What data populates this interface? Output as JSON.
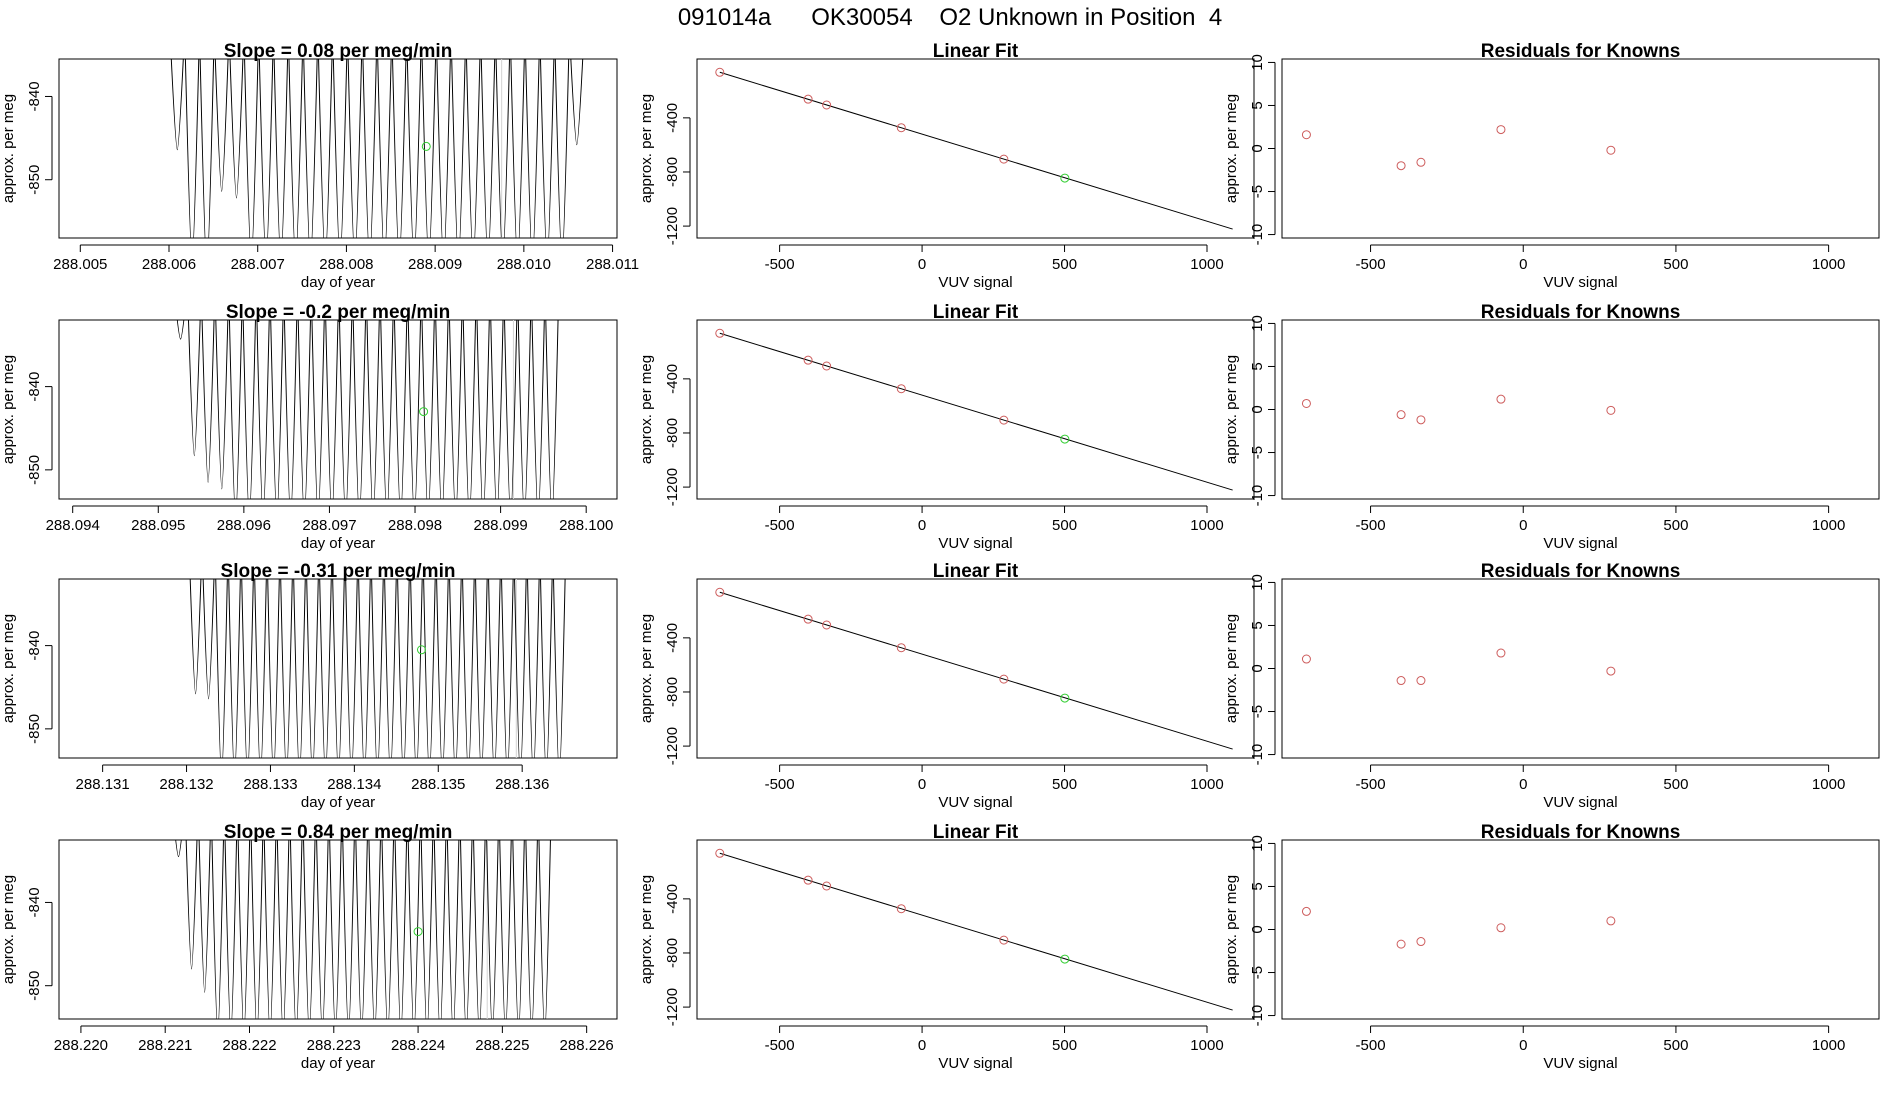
{
  "page": {
    "title": "091014a      OK30054    O2 Unknown in Position  4"
  },
  "colors": {
    "known": "#cd5c5c",
    "unknown": "#32cd32",
    "line": "#000000",
    "trace": "#000000",
    "refline": "#d3d3d3"
  },
  "chart_data": [
    {
      "type": "line",
      "row": 0,
      "panel": "time",
      "title": "Slope =  0.08  per meg/min",
      "xlabel": "day of year",
      "ylabel": "approx. per meg",
      "xlim": [
        288.00476,
        288.01105
      ],
      "ylim": [
        -857,
        -835.5
      ],
      "xticks": [
        288.005,
        288.006,
        288.007,
        288.008,
        288.009,
        288.01,
        288.011
      ],
      "xtick_labels": [
        "288.005",
        "288.006",
        "288.007",
        "288.008",
        "288.009",
        "288.010",
        "288.011"
      ],
      "yticks": [
        -840,
        -850
      ],
      "ytick_labels": [
        "-840",
        "-850"
      ],
      "trace": {
        "start": 288.00601,
        "end": 288.01068,
        "cycles": 28,
        "top": -832,
        "minima": [
          -846.4,
          -860,
          -861,
          -851.4,
          -852.2,
          -860,
          -860,
          -860,
          -860,
          -860,
          -860,
          -860,
          -860,
          -860,
          -860,
          -860,
          -860,
          -860,
          -860,
          -860,
          -860,
          -860,
          -860,
          -860,
          -860,
          -860,
          -860,
          -845.8
        ]
      },
      "refline_x": 288.00975,
      "unknown_point": {
        "x": 288.0089,
        "y": -846
      }
    },
    {
      "type": "scatter",
      "row": 0,
      "panel": "fit",
      "title": "Linear Fit",
      "xlabel": "VUV signal",
      "ylabel": "approx. per meg",
      "xlim": [
        -790,
        1165
      ],
      "ylim": [
        -1288,
        35
      ],
      "xticks": [
        -500,
        0,
        500,
        1000
      ],
      "xtick_labels": [
        "-500",
        "0",
        "500",
        "1000"
      ],
      "yticks": [
        -400,
        -800,
        -1200
      ],
      "ytick_labels": [
        "-400",
        "-800",
        "-1200"
      ],
      "fit_line": {
        "x": [
          -710,
          1090
        ],
        "y": [
          -63,
          -1222
        ]
      },
      "knowns": {
        "x": [
          -710,
          -400,
          -335,
          -73,
          287
        ],
        "y": [
          -63,
          -262,
          -305,
          -473,
          -705
        ]
      },
      "unknown": {
        "x": [
          501
        ],
        "y": [
          -845
        ]
      }
    },
    {
      "type": "scatter",
      "row": 0,
      "panel": "resid",
      "title": "Residuals for Knowns",
      "xlabel": "VUV signal",
      "ylabel": "approx. per meg",
      "xlim": [
        -790,
        1165
      ],
      "ylim": [
        -10.4,
        10.4
      ],
      "xticks": [
        -500,
        0,
        500,
        1000
      ],
      "xtick_labels": [
        "-500",
        "0",
        "500",
        "1000"
      ],
      "yticks": [
        10,
        5,
        0,
        -5,
        -10
      ],
      "ytick_labels": [
        "10",
        "5",
        "0",
        "-5",
        "-10"
      ],
      "knowns": {
        "x": [
          -710,
          -400,
          -335,
          -73,
          287
        ],
        "y": [
          1.6,
          -2.0,
          -1.6,
          2.2,
          -0.2
        ]
      }
    },
    {
      "type": "line",
      "row": 1,
      "panel": "time",
      "title": "Slope =  -0.2  per meg/min",
      "xlabel": "day of year",
      "ylabel": "approx. per meg",
      "xlim": [
        288.09384,
        288.10036
      ],
      "ylim": [
        -853.5,
        -832
      ],
      "xticks": [
        288.094,
        288.095,
        288.096,
        288.097,
        288.098,
        288.099,
        288.1
      ],
      "xtick_labels": [
        "288.094",
        "288.095",
        "288.096",
        "288.097",
        "288.098",
        "288.099",
        "288.100"
      ],
      "yticks": [
        -840,
        -850
      ],
      "ytick_labels": [
        "-840",
        "-850"
      ],
      "trace": {
        "start": 288.09518,
        "end": 288.09968,
        "cycles": 28,
        "top": -828,
        "minima": [
          -834.3,
          -848.3,
          -851.5,
          -852.3,
          -856,
          -856,
          -856,
          -856,
          -856,
          -856,
          -856,
          -856,
          -856,
          -856,
          -856,
          -856,
          -856,
          -856,
          -856,
          -856,
          -856,
          -856,
          -856,
          -856,
          -856,
          -856,
          -856,
          -856
        ]
      },
      "refline_x": 288.09915,
      "unknown_point": {
        "x": 288.0981,
        "y": -843
      }
    },
    {
      "type": "scatter",
      "row": 1,
      "panel": "fit",
      "title": "Linear Fit",
      "xlabel": "VUV signal",
      "ylabel": "approx. per meg",
      "xlim": [
        -790,
        1165
      ],
      "ylim": [
        -1288,
        35
      ],
      "xticks": [
        -500,
        0,
        500,
        1000
      ],
      "xtick_labels": [
        "-500",
        "0",
        "500",
        "1000"
      ],
      "yticks": [
        -400,
        -800,
        -1200
      ],
      "ytick_labels": [
        "-400",
        "-800",
        "-1200"
      ],
      "fit_line": {
        "x": [
          -710,
          1090
        ],
        "y": [
          -63,
          -1222
        ]
      },
      "knowns": {
        "x": [
          -710,
          -400,
          -335,
          -73,
          287
        ],
        "y": [
          -63,
          -262,
          -305,
          -473,
          -705
        ]
      },
      "unknown": {
        "x": [
          501
        ],
        "y": [
          -845
        ]
      }
    },
    {
      "type": "scatter",
      "row": 1,
      "panel": "resid",
      "title": "Residuals for Knowns",
      "xlabel": "VUV signal",
      "ylabel": "approx. per meg",
      "xlim": [
        -790,
        1165
      ],
      "ylim": [
        -10.4,
        10.4
      ],
      "xticks": [
        -500,
        0,
        500,
        1000
      ],
      "xtick_labels": [
        "-500",
        "0",
        "500",
        "1000"
      ],
      "yticks": [
        10,
        5,
        0,
        -5,
        -10
      ],
      "ytick_labels": [
        "10",
        "5",
        "0",
        "-5",
        "-10"
      ],
      "knowns": {
        "x": [
          -710,
          -400,
          -335,
          -73,
          287
        ],
        "y": [
          0.7,
          -0.6,
          -1.2,
          1.2,
          -0.1
        ]
      }
    },
    {
      "type": "line",
      "row": 2,
      "panel": "time",
      "title": "Slope =  -0.31  per meg/min",
      "xlabel": "day of year",
      "ylabel": "approx. per meg",
      "xlim": [
        288.13048,
        288.13713
      ],
      "ylim": [
        -853.5,
        -832
      ],
      "xticks": [
        288.131,
        288.132,
        288.133,
        288.134,
        288.135,
        288.136
      ],
      "xtick_labels": [
        "288.131",
        "288.132",
        "288.133",
        "288.134",
        "288.135",
        "288.136"
      ],
      "yticks": [
        -840,
        -850
      ],
      "ytick_labels": [
        "-840",
        "-850"
      ],
      "trace": {
        "start": 288.13203,
        "end": 288.13652,
        "cycles": 29,
        "top": -828,
        "minima": [
          -845.8,
          -846.4,
          -856,
          -856,
          -856,
          -856,
          -856,
          -856,
          -856,
          -856,
          -856,
          -856,
          -856,
          -856,
          -856,
          -856,
          -856,
          -856,
          -856,
          -856,
          -856,
          -856,
          -856,
          -856,
          -856,
          -856,
          -856,
          -856,
          -856
        ]
      },
      "refline_x": 288.13593,
      "unknown_point": {
        "x": 288.1348,
        "y": -840.5
      }
    },
    {
      "type": "scatter",
      "row": 2,
      "panel": "fit",
      "title": "Linear Fit",
      "xlabel": "VUV signal",
      "ylabel": "approx. per meg",
      "xlim": [
        -790,
        1165
      ],
      "ylim": [
        -1288,
        35
      ],
      "xticks": [
        -500,
        0,
        500,
        1000
      ],
      "xtick_labels": [
        "-500",
        "0",
        "500",
        "1000"
      ],
      "yticks": [
        -400,
        -800,
        -1200
      ],
      "ytick_labels": [
        "-400",
        "-800",
        "-1200"
      ],
      "fit_line": {
        "x": [
          -710,
          1090
        ],
        "y": [
          -63,
          -1222
        ]
      },
      "knowns": {
        "x": [
          -710,
          -400,
          -335,
          -73,
          287
        ],
        "y": [
          -63,
          -262,
          -305,
          -473,
          -705
        ]
      },
      "unknown": {
        "x": [
          501
        ],
        "y": [
          -845
        ]
      }
    },
    {
      "type": "scatter",
      "row": 2,
      "panel": "resid",
      "title": "Residuals for Knowns",
      "xlabel": "VUV signal",
      "ylabel": "approx. per meg",
      "xlim": [
        -790,
        1165
      ],
      "ylim": [
        -10.4,
        10.4
      ],
      "xticks": [
        -500,
        0,
        500,
        1000
      ],
      "xtick_labels": [
        "-500",
        "0",
        "500",
        "1000"
      ],
      "yticks": [
        10,
        5,
        0,
        -5,
        -10
      ],
      "ytick_labels": [
        "10",
        "5",
        "0",
        "-5",
        "-10"
      ],
      "knowns": {
        "x": [
          -710,
          -400,
          -335,
          -73,
          287
        ],
        "y": [
          1.1,
          -1.4,
          -1.4,
          1.8,
          -0.3
        ]
      }
    },
    {
      "type": "line",
      "row": 3,
      "panel": "time",
      "title": "Slope =  0.84  per meg/min",
      "xlabel": "day of year",
      "ylabel": "approx. per meg",
      "xlim": [
        288.21974,
        288.22636
      ],
      "ylim": [
        -854,
        -832.5
      ],
      "xticks": [
        288.22,
        288.221,
        288.222,
        288.223,
        288.224,
        288.225,
        288.226
      ],
      "xtick_labels": [
        "288.220",
        "288.221",
        "288.222",
        "288.223",
        "288.224",
        "288.225",
        "288.226"
      ],
      "yticks": [
        -840,
        -850
      ],
      "ytick_labels": [
        "-840",
        "-850"
      ],
      "trace": {
        "start": 288.22108,
        "end": 288.22558,
        "cycles": 29,
        "top": -828,
        "minima": [
          -834.5,
          -848,
          -850.8,
          -856,
          -856,
          -856,
          -856,
          -856,
          -856,
          -856,
          -856,
          -856,
          -856,
          -856,
          -856,
          -856,
          -856,
          -856,
          -856,
          -856,
          -856,
          -856,
          -856,
          -856,
          -856,
          -856,
          -856,
          -856,
          -856
        ]
      },
      "refline_x": 288.22482,
      "unknown_point": {
        "x": 288.224,
        "y": -843.5
      }
    },
    {
      "type": "scatter",
      "row": 3,
      "panel": "fit",
      "title": "Linear Fit",
      "xlabel": "VUV signal",
      "ylabel": "approx. per meg",
      "xlim": [
        -790,
        1165
      ],
      "ylim": [
        -1288,
        35
      ],
      "xticks": [
        -500,
        0,
        500,
        1000
      ],
      "xtick_labels": [
        "-500",
        "0",
        "500",
        "1000"
      ],
      "yticks": [
        -400,
        -800,
        -1200
      ],
      "ytick_labels": [
        "-400",
        "-800",
        "-1200"
      ],
      "fit_line": {
        "x": [
          -710,
          1090
        ],
        "y": [
          -63,
          -1222
        ]
      },
      "knowns": {
        "x": [
          -710,
          -400,
          -335,
          -73,
          287
        ],
        "y": [
          -63,
          -262,
          -305,
          -473,
          -705
        ]
      },
      "unknown": {
        "x": [
          501
        ],
        "y": [
          -845
        ]
      }
    },
    {
      "type": "scatter",
      "row": 3,
      "panel": "resid",
      "title": "Residuals for Knowns",
      "xlabel": "VUV signal",
      "ylabel": "approx. per meg",
      "xlim": [
        -790,
        1165
      ],
      "ylim": [
        -10.4,
        10.4
      ],
      "xticks": [
        -500,
        0,
        500,
        1000
      ],
      "xtick_labels": [
        "-500",
        "0",
        "500",
        "1000"
      ],
      "yticks": [
        10,
        5,
        0,
        -5,
        -10
      ],
      "ytick_labels": [
        "10",
        "5",
        "0",
        "-5",
        "-10"
      ],
      "knowns": {
        "x": [
          -710,
          -400,
          -335,
          -73,
          287
        ],
        "y": [
          2.1,
          -1.7,
          -1.4,
          0.2,
          1.0
        ]
      }
    }
  ]
}
